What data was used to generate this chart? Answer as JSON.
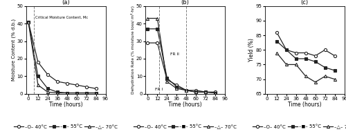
{
  "panel_a": {
    "time": [
      0,
      12,
      24,
      36,
      48,
      60,
      72,
      84
    ],
    "t40": [
      41,
      18,
      11,
      7,
      6,
      5,
      4,
      3
    ],
    "t55": [
      41,
      10,
      3,
      1,
      0.5,
      0.5,
      0.5,
      0.5
    ],
    "t70": [
      41,
      5,
      1,
      0.5,
      0.5,
      0.5,
      0.5,
      0.5
    ],
    "vline_x": 7,
    "annotation": "Critical Moisture Content, Mc",
    "ylabel": "Moisture Content (% d.b.)",
    "xlabel": "Time (hours)",
    "ylim": [
      0,
      50
    ],
    "yticks": [
      0,
      10,
      20,
      30,
      40,
      50
    ],
    "xticks": [
      0,
      12,
      24,
      36,
      48,
      60,
      72,
      84,
      96
    ],
    "label": "(a)"
  },
  "panel_b": {
    "time": [
      0,
      12,
      24,
      36,
      48,
      60,
      72,
      84
    ],
    "t40": [
      29,
      29,
      8,
      5,
      2,
      2,
      1,
      1
    ],
    "t55": [
      37,
      37,
      9,
      4,
      2,
      1,
      1,
      0.5
    ],
    "t70": [
      43,
      43,
      7,
      3,
      2,
      1,
      1,
      0.5
    ],
    "vline1_x": 14,
    "vline2_x": 48,
    "fr1_x": 9,
    "fr1_y": 2,
    "fr2_x": 28,
    "fr2_y": 22,
    "fr1_text": "FR I",
    "fr2_text": "FR II",
    "ylabel": "Dehydration Rate (% moisture loss/ m²·hr)",
    "xlabel": "Time (hours)",
    "ylim": [
      0,
      50
    ],
    "yticks": [
      0,
      10,
      20,
      30,
      40,
      50
    ],
    "xticks": [
      0,
      12,
      24,
      36,
      48,
      60,
      72,
      84,
      96
    ],
    "label": "(b)"
  },
  "panel_c": {
    "time": [
      12,
      24,
      36,
      48,
      60,
      72,
      84
    ],
    "t40": [
      86,
      80,
      79,
      79,
      78,
      80,
      78
    ],
    "t55": [
      83,
      80,
      77,
      77,
      76,
      74,
      73
    ],
    "t70": [
      79,
      75,
      75,
      71,
      69,
      71,
      70
    ],
    "ylabel": "Yield (%)",
    "xlabel": "Time (hours)",
    "ylim": [
      65,
      95
    ],
    "yticks": [
      65,
      70,
      75,
      80,
      85,
      90,
      95
    ],
    "xticks": [
      0,
      12,
      24,
      36,
      48,
      60,
      72,
      84,
      96
    ],
    "label": "(c)"
  },
  "legend_labels": [
    "40°C",
    "55°C",
    "70°C"
  ],
  "line_color": "#222222",
  "fontsize": 5.5,
  "tick_fontsize": 5.0,
  "legend_fontsize": 5.0
}
